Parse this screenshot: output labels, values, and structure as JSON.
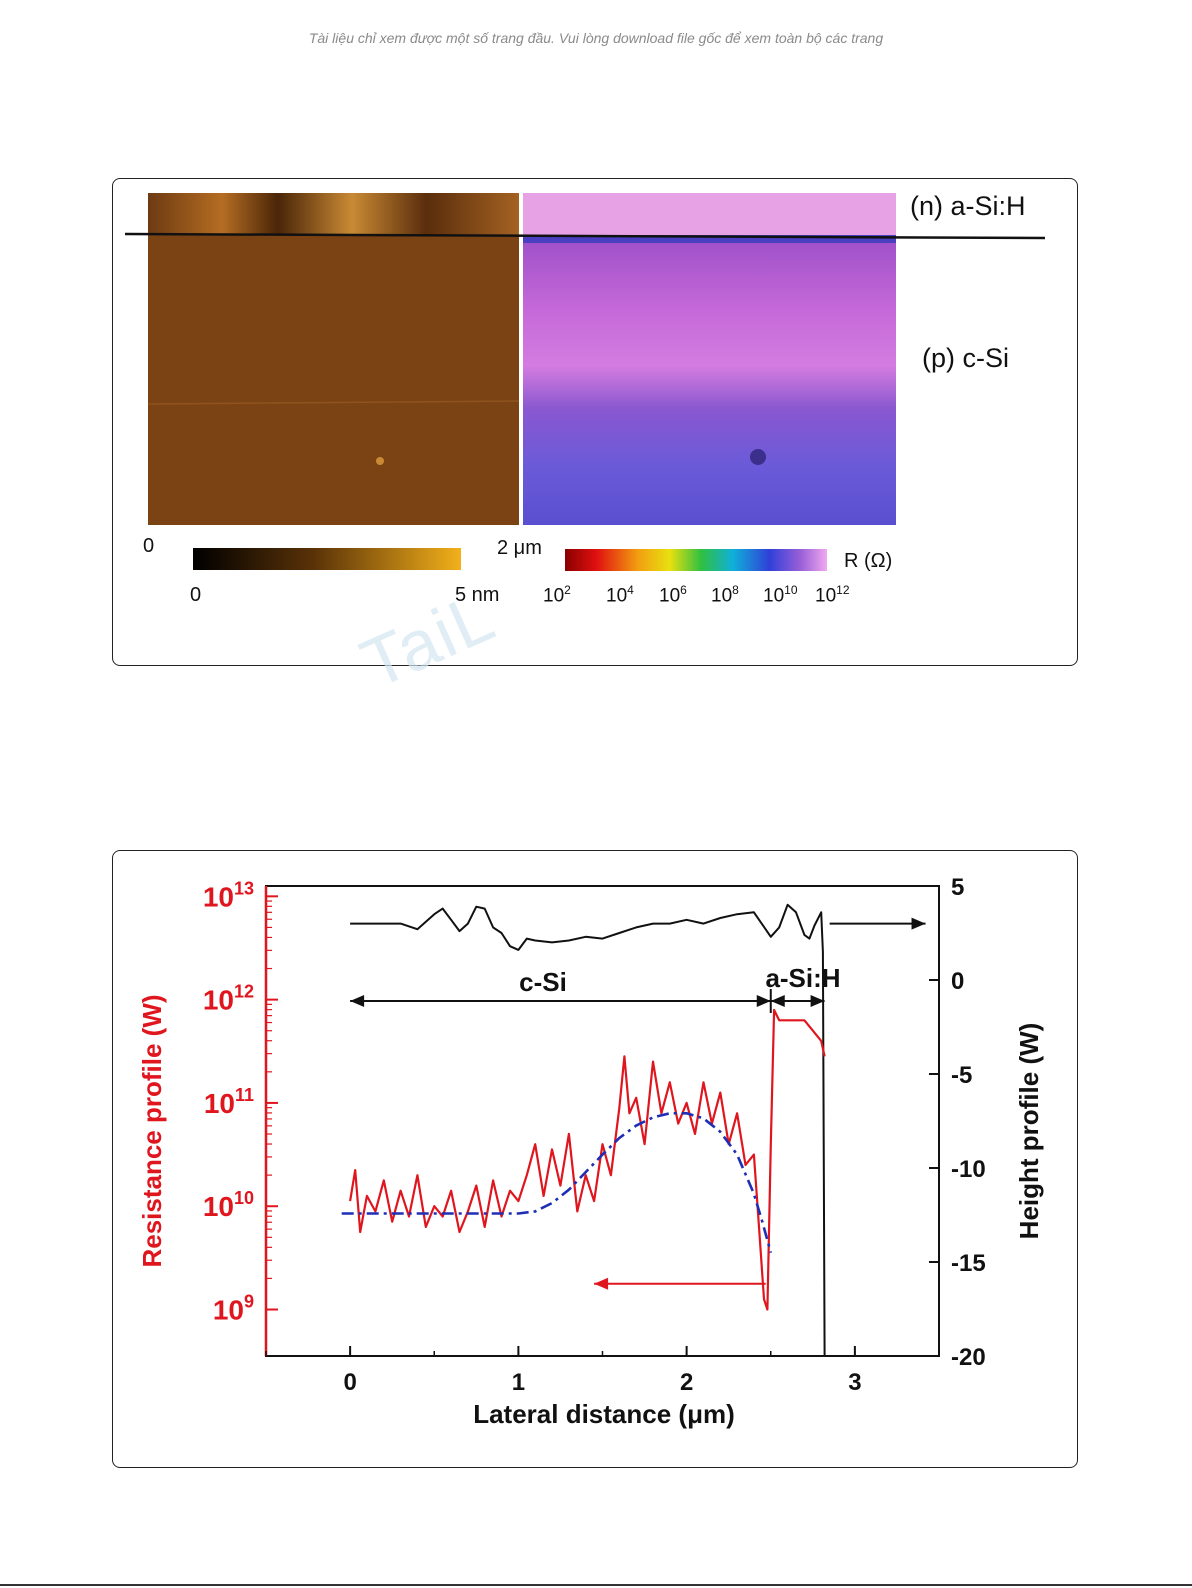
{
  "notice": "Tài liệu chỉ xem được một số trang đầu. Vui lòng download file gốc để xem toàn bộ các trang",
  "map_figure": {
    "layer_top": "(n) a-Si:H",
    "layer_bottom": "(p) c-Si",
    "scale_start": "0",
    "scale_end": "2 μm",
    "height_bar": {
      "min": "0",
      "max": "5 nm"
    },
    "resistance_bar": {
      "unit": "R (Ω)",
      "ticks": [
        "10",
        "10",
        "10",
        "10",
        "10",
        "10"
      ],
      "exponents": [
        "2",
        "4",
        "6",
        "8",
        "10",
        "12"
      ]
    }
  },
  "chart_data": {
    "type": "line",
    "xlabel": "Lateral distance (μm)",
    "ylabel_left": "Resistance profile (W)",
    "ylabel_right": "Height profile (W)",
    "xlim": [
      -0.5,
      3.5
    ],
    "ylim_left_log10": [
      8.55,
      13.1
    ],
    "ylim_right": [
      -20,
      5
    ],
    "x_ticks": [
      "0",
      "1",
      "2",
      "3"
    ],
    "y_ticks_left_base": "10",
    "y_ticks_left_exp": [
      "13",
      "12",
      "11",
      "10",
      "9"
    ],
    "y_ticks_right": [
      "5",
      "0",
      "-5",
      "-10",
      "-15",
      "-20"
    ],
    "annotations": {
      "region_csi": "c-Si",
      "region_asih": "a-Si:H"
    },
    "colors": {
      "resistance": "#e0161f",
      "height": "#111111",
      "fit": "#1f2fb5",
      "left_axis": "#e0161f"
    },
    "series": [
      {
        "axis": "right",
        "x": [
          0,
          0.1,
          0.2,
          0.3,
          0.4,
          0.5,
          0.55,
          0.6,
          0.65,
          0.7,
          0.75,
          0.8,
          0.85,
          0.9,
          0.95,
          1.0,
          1.05,
          1.1,
          1.2,
          1.3,
          1.4,
          1.5,
          1.6,
          1.7,
          1.8,
          1.9,
          2.0,
          2.1,
          2.2,
          2.3,
          2.4,
          2.5,
          2.55,
          2.6,
          2.65,
          2.7,
          2.73,
          2.76,
          2.8,
          2.81,
          2.82
        ],
        "values": [
          3,
          3,
          3,
          3,
          2.7,
          3.5,
          3.8,
          3.2,
          2.6,
          3,
          3.9,
          3.8,
          2.8,
          2.5,
          1.8,
          1.6,
          2.2,
          2.1,
          2.0,
          2.1,
          2.3,
          2.2,
          2.5,
          2.8,
          3.0,
          3.0,
          3.2,
          3.0,
          3.3,
          3.5,
          3.6,
          2.3,
          2.8,
          4.0,
          3.6,
          2.4,
          2.2,
          2.9,
          3.6,
          1.5,
          -20
        ]
      },
      {
        "axis": "left",
        "x": [
          0,
          0.03,
          0.06,
          0.1,
          0.15,
          0.2,
          0.25,
          0.3,
          0.35,
          0.4,
          0.45,
          0.5,
          0.55,
          0.6,
          0.65,
          0.7,
          0.75,
          0.8,
          0.85,
          0.9,
          0.95,
          1.0,
          1.05,
          1.1,
          1.15,
          1.2,
          1.25,
          1.3,
          1.35,
          1.4,
          1.45,
          1.5,
          1.55,
          1.6,
          1.63,
          1.66,
          1.7,
          1.75,
          1.8,
          1.85,
          1.9,
          1.95,
          2.0,
          2.05,
          2.1,
          2.15,
          2.2,
          2.25,
          2.3,
          2.35,
          2.4,
          2.43,
          2.46,
          2.48,
          2.5,
          2.52,
          2.55,
          2.6,
          2.65,
          2.7,
          2.75,
          2.8,
          2.82
        ],
        "values": [
          10.05,
          10.35,
          9.75,
          10.1,
          9.95,
          10.25,
          9.85,
          10.15,
          9.9,
          10.3,
          9.8,
          10.0,
          9.9,
          10.15,
          9.75,
          9.95,
          10.2,
          9.8,
          10.25,
          9.9,
          10.15,
          10.05,
          10.3,
          10.6,
          10.1,
          10.55,
          10.2,
          10.7,
          9.95,
          10.3,
          10.05,
          10.6,
          10.3,
          10.95,
          11.45,
          10.9,
          11.05,
          10.6,
          11.4,
          10.9,
          11.2,
          10.8,
          11.0,
          10.7,
          11.2,
          10.8,
          11.1,
          10.6,
          10.9,
          10.4,
          10.5,
          9.8,
          9.1,
          9.0,
          10.6,
          11.9,
          11.8,
          11.8,
          11.8,
          11.8,
          11.7,
          11.6,
          11.45
        ]
      },
      {
        "axis": "left",
        "x": [
          -0.05,
          0.2,
          0.4,
          0.6,
          0.8,
          1.0,
          1.1,
          1.2,
          1.3,
          1.4,
          1.5,
          1.6,
          1.7,
          1.8,
          1.9,
          2.0,
          2.1,
          2.2,
          2.3,
          2.4,
          2.45,
          2.5
        ],
        "values": [
          9.93,
          9.93,
          9.93,
          9.93,
          9.93,
          9.93,
          9.95,
          10.03,
          10.16,
          10.33,
          10.5,
          10.66,
          10.78,
          10.86,
          10.9,
          10.9,
          10.85,
          10.72,
          10.5,
          10.12,
          9.85,
          9.55
        ]
      }
    ]
  }
}
